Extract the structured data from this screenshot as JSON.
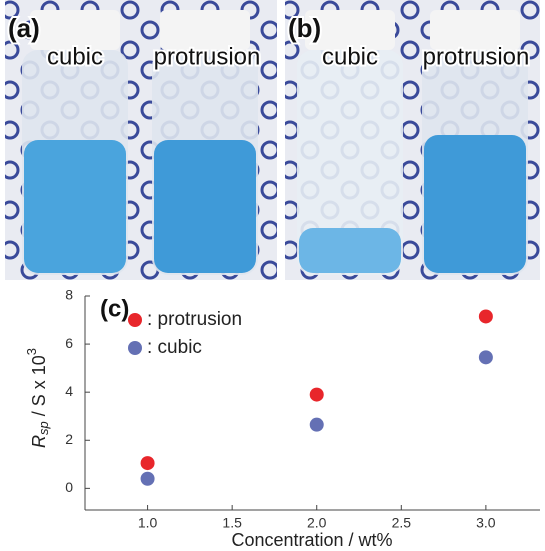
{
  "photos": [
    {
      "label": "(a)",
      "left": "cubic",
      "right": "protrusion"
    },
    {
      "label": "(b)",
      "left": "cubic",
      "right": "protrusion"
    }
  ],
  "chart_data": {
    "type": "scatter",
    "annotation": "(c)",
    "xlabel": "Concentration / wt%",
    "ylabel_parts": [
      "R",
      "sp",
      " / S x 10",
      "3"
    ],
    "x": [
      1,
      2,
      3
    ],
    "series": [
      {
        "name": ": protrusion",
        "color": "#e8262b",
        "values": [
          1.05,
          3.9,
          7.15
        ]
      },
      {
        "name": ": cubic",
        "color": "#6470b4",
        "values": [
          0.4,
          2.65,
          5.45
        ]
      }
    ],
    "xlim": [
      0.63,
      3.32
    ],
    "ylim": [
      -0.9,
      8
    ],
    "xticks": [
      {
        "value": 1,
        "label": "1.0"
      },
      {
        "value": 1.5,
        "label": "1.5"
      },
      {
        "value": 2,
        "label": "2.0"
      },
      {
        "value": 2.5,
        "label": "2.5"
      },
      {
        "value": 3,
        "label": "3.0"
      }
    ],
    "yticks": [
      0,
      2,
      4,
      6,
      8
    ],
    "legend": "upper left"
  }
}
